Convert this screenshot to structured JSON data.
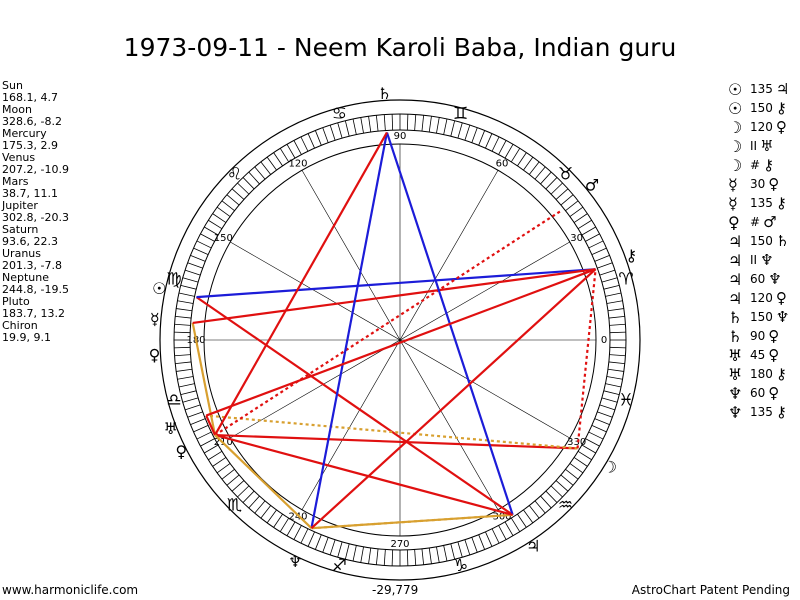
{
  "title": "1973-09-11 - Neem Karoli Baba, Indian guru",
  "planets": [
    {
      "name": "Sun",
      "coords": "168.1, 4.7"
    },
    {
      "name": "Moon",
      "coords": "328.6, -8.2"
    },
    {
      "name": "Mercury",
      "coords": "175.3, 2.9"
    },
    {
      "name": "Venus",
      "coords": "207.2, -10.9"
    },
    {
      "name": "Mars",
      "coords": "38.7, 11.1"
    },
    {
      "name": "Jupiter",
      "coords": "302.8, -20.3"
    },
    {
      "name": "Saturn",
      "coords": "93.6, 22.3"
    },
    {
      "name": "Uranus",
      "coords": "201.3, -7.8"
    },
    {
      "name": "Neptune",
      "coords": "244.8, -19.5"
    },
    {
      "name": "Pluto",
      "coords": "183.7, 13.2"
    },
    {
      "name": "Chiron",
      "coords": "19.9, 9.1"
    }
  ],
  "aspects": [
    {
      "g1": "☉",
      "angle": "135",
      "g2": "♃"
    },
    {
      "g1": "☉",
      "angle": "150",
      "g2": "⚷"
    },
    {
      "g1": "☽",
      "angle": "120",
      "g2": "♀"
    },
    {
      "g1": "☽",
      "angle": "II",
      "g2": "♅"
    },
    {
      "g1": "☽",
      "angle": "#",
      "g2": "⚷"
    },
    {
      "g1": "☿",
      "angle": "30",
      "g2": "♀"
    },
    {
      "g1": "☿",
      "angle": "135",
      "g2": "⚷"
    },
    {
      "g1": "♀",
      "angle": "#",
      "g2": "♂"
    },
    {
      "g1": "♃",
      "angle": "150",
      "g2": "♄"
    },
    {
      "g1": "♃",
      "angle": "II",
      "g2": "♆"
    },
    {
      "g1": "♃",
      "angle": "60",
      "g2": "♆"
    },
    {
      "g1": "♃",
      "angle": "120",
      "g2": "♀"
    },
    {
      "g1": "♄",
      "angle": "150",
      "g2": "♆"
    },
    {
      "g1": "♄",
      "angle": "90",
      "g2": "♀"
    },
    {
      "g1": "♅",
      "angle": "45",
      "g2": "♀"
    },
    {
      "g1": "♅",
      "angle": "180",
      "g2": "⚷"
    },
    {
      "g1": "♆",
      "angle": "60",
      "g2": "♀"
    },
    {
      "g1": "♆",
      "angle": "135",
      "g2": "⚷"
    }
  ],
  "wheel": {
    "degree_labels": [
      "0",
      "30",
      "60",
      "90",
      "120",
      "150",
      "180",
      "210",
      "240",
      "270",
      "300",
      "330"
    ],
    "zodiac_glyphs": [
      "♓",
      "♈",
      "♉",
      "♊",
      "♋",
      "♌",
      "♍",
      "♎",
      "♏",
      "♐",
      "♑",
      "♒"
    ],
    "planet_glyphs": {
      "Sun": "☉",
      "Moon": "☽",
      "Mercury": "☿",
      "Venus": "♀",
      "Mars": "♂",
      "Jupiter": "♃",
      "Saturn": "♄",
      "Uranus": "♅",
      "Neptune": "♆",
      "Pluto": "♀",
      "Chiron": "⚷"
    }
  },
  "footer": {
    "left": "www.harmoniclife.com",
    "middle": "-29,779",
    "right": "AstroChart Patent Pending"
  }
}
